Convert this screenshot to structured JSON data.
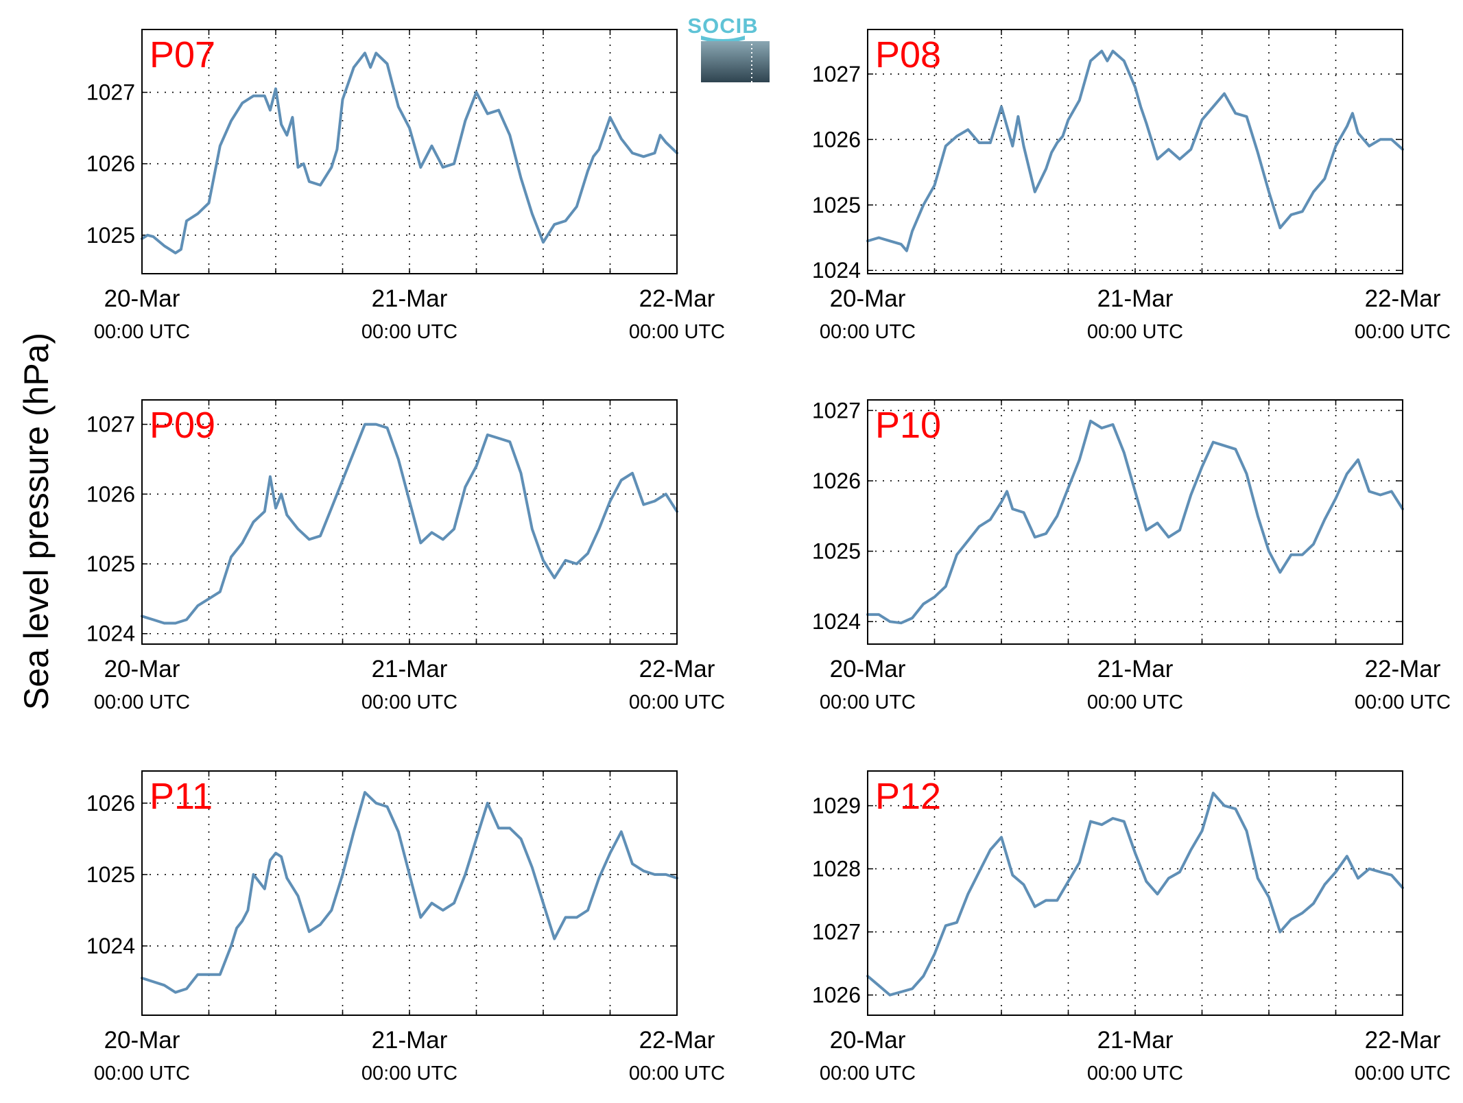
{
  "ylabel": "Sea level pressure (hPa)",
  "logo": {
    "text": "SOCIB"
  },
  "colors": {
    "line": "#5f8fb6",
    "panel_label": "#ff0000",
    "grid": "#000000"
  },
  "chart_data": [
    {
      "type": "line",
      "label": "P07",
      "x_ticks": [
        {
          "top": "20-Mar",
          "bottom": "00:00 UTC"
        },
        {
          "top": "21-Mar",
          "bottom": "00:00 UTC"
        },
        {
          "top": "22-Mar",
          "bottom": "00:00 UTC"
        }
      ],
      "xlim": [
        0,
        48
      ],
      "ylim": [
        1024.46,
        1027.88
      ],
      "yticks": [
        1025,
        1026,
        1027
      ],
      "grid": true,
      "x": [
        0,
        0.5,
        1,
        2,
        2.5,
        3,
        3.5,
        4,
        5,
        6,
        7,
        8,
        9,
        10,
        11,
        11.5,
        12,
        12.5,
        13,
        13.5,
        14,
        14.5,
        15,
        16,
        17,
        17.5,
        18,
        19,
        20,
        20.5,
        21,
        22,
        22.5,
        23,
        24,
        25,
        26,
        27,
        28,
        29,
        30,
        31,
        32,
        33,
        34,
        35,
        36,
        37,
        38,
        39,
        40,
        40.5,
        41,
        42,
        43,
        44,
        45,
        46,
        46.5,
        47,
        48
      ],
      "y": [
        1024.95,
        1025.0,
        1024.98,
        1024.85,
        1024.8,
        1024.75,
        1024.8,
        1025.2,
        1025.3,
        1025.45,
        1026.25,
        1026.6,
        1026.85,
        1026.95,
        1026.95,
        1026.75,
        1027.05,
        1026.55,
        1026.4,
        1026.65,
        1025.95,
        1026.0,
        1025.75,
        1025.7,
        1025.95,
        1026.2,
        1026.9,
        1027.35,
        1027.55,
        1027.35,
        1027.55,
        1027.4,
        1027.1,
        1026.8,
        1026.5,
        1025.95,
        1026.25,
        1025.95,
        1026.0,
        1026.6,
        1027.0,
        1026.7,
        1026.75,
        1026.4,
        1025.8,
        1025.3,
        1024.9,
        1025.15,
        1025.2,
        1025.4,
        1025.9,
        1026.1,
        1026.2,
        1026.65,
        1026.35,
        1026.15,
        1026.1,
        1026.15,
        1026.4,
        1026.3,
        1026.15
      ]
    },
    {
      "type": "line",
      "label": "P08",
      "x_ticks": [
        {
          "top": "20-Mar",
          "bottom": "00:00 UTC"
        },
        {
          "top": "21-Mar",
          "bottom": "00:00 UTC"
        },
        {
          "top": "22-Mar",
          "bottom": "00:00 UTC"
        }
      ],
      "xlim": [
        0,
        48
      ],
      "ylim": [
        1023.95,
        1027.68
      ],
      "yticks": [
        1024,
        1025,
        1026,
        1027
      ],
      "grid": true,
      "x": [
        0,
        1,
        2,
        3,
        3.5,
        4,
        5,
        6,
        7,
        8,
        9,
        10,
        11,
        12,
        13,
        13.5,
        14,
        14.5,
        15,
        16,
        16.5,
        17,
        17.5,
        18,
        19,
        20,
        21,
        21.5,
        22,
        23,
        24,
        24.5,
        25,
        26,
        27,
        28,
        29,
        30,
        31,
        32,
        33,
        34,
        35,
        35.5,
        36,
        37,
        38,
        39,
        40,
        41,
        42,
        43,
        43.5,
        44,
        45,
        46,
        47,
        48
      ],
      "y": [
        1024.45,
        1024.5,
        1024.45,
        1024.4,
        1024.3,
        1024.6,
        1025.0,
        1025.3,
        1025.9,
        1026.05,
        1026.15,
        1025.95,
        1025.95,
        1026.5,
        1025.9,
        1026.35,
        1025.9,
        1025.55,
        1025.2,
        1025.55,
        1025.8,
        1025.95,
        1026.05,
        1026.3,
        1026.6,
        1027.2,
        1027.35,
        1027.2,
        1027.35,
        1027.2,
        1026.8,
        1026.5,
        1026.25,
        1025.7,
        1025.85,
        1025.7,
        1025.85,
        1026.3,
        1026.5,
        1026.7,
        1026.4,
        1026.35,
        1025.8,
        1025.5,
        1025.2,
        1024.65,
        1024.85,
        1024.9,
        1025.2,
        1025.4,
        1025.9,
        1026.2,
        1026.4,
        1026.1,
        1025.9,
        1026.0,
        1026.0,
        1025.85
      ]
    },
    {
      "type": "line",
      "label": "P09",
      "x_ticks": [
        {
          "top": "20-Mar",
          "bottom": "00:00 UTC"
        },
        {
          "top": "21-Mar",
          "bottom": "00:00 UTC"
        },
        {
          "top": "22-Mar",
          "bottom": "00:00 UTC"
        }
      ],
      "xlim": [
        0,
        48
      ],
      "ylim": [
        1023.85,
        1027.35
      ],
      "yticks": [
        1024,
        1025,
        1026,
        1027
      ],
      "grid": true,
      "x": [
        0,
        1,
        2,
        3,
        4,
        5,
        6,
        7,
        8,
        9,
        10,
        11,
        11.5,
        12,
        12.5,
        13,
        14,
        15,
        16,
        17,
        18,
        19,
        20,
        21,
        22,
        23,
        24,
        25,
        26,
        27,
        28,
        29,
        30,
        31,
        32,
        33,
        34,
        35,
        36,
        37,
        38,
        39,
        40,
        41,
        42,
        43,
        44,
        45,
        46,
        47,
        48
      ],
      "y": [
        1024.25,
        1024.2,
        1024.15,
        1024.15,
        1024.2,
        1024.4,
        1024.5,
        1024.6,
        1025.1,
        1025.3,
        1025.6,
        1025.75,
        1026.25,
        1025.8,
        1026.0,
        1025.7,
        1025.5,
        1025.35,
        1025.4,
        1025.8,
        1026.2,
        1026.6,
        1027.0,
        1027.0,
        1026.95,
        1026.5,
        1025.9,
        1025.3,
        1025.45,
        1025.35,
        1025.5,
        1026.1,
        1026.4,
        1026.85,
        1026.8,
        1026.75,
        1026.3,
        1025.5,
        1025.05,
        1024.8,
        1025.05,
        1025.0,
        1025.15,
        1025.5,
        1025.9,
        1026.2,
        1026.3,
        1025.85,
        1025.9,
        1026.0,
        1025.75
      ]
    },
    {
      "type": "line",
      "label": "P10",
      "x_ticks": [
        {
          "top": "20-Mar",
          "bottom": "00:00 UTC"
        },
        {
          "top": "21-Mar",
          "bottom": "00:00 UTC"
        },
        {
          "top": "22-Mar",
          "bottom": "00:00 UTC"
        }
      ],
      "xlim": [
        0,
        48
      ],
      "ylim": [
        1023.68,
        1027.15
      ],
      "yticks": [
        1024,
        1025,
        1026,
        1027
      ],
      "grid": true,
      "x": [
        0,
        1,
        2,
        3,
        4,
        5,
        6,
        7,
        8,
        9,
        10,
        11,
        12,
        12.5,
        13,
        14,
        15,
        16,
        17,
        18,
        19,
        20,
        21,
        22,
        23,
        24,
        25,
        26,
        27,
        28,
        29,
        30,
        31,
        32,
        33,
        34,
        35,
        36,
        37,
        38,
        39,
        40,
        41,
        42,
        43,
        44,
        45,
        46,
        47,
        48
      ],
      "y": [
        1024.1,
        1024.1,
        1024.0,
        1023.98,
        1024.05,
        1024.25,
        1024.35,
        1024.5,
        1024.95,
        1025.15,
        1025.35,
        1025.45,
        1025.7,
        1025.85,
        1025.6,
        1025.55,
        1025.2,
        1025.25,
        1025.5,
        1025.9,
        1026.3,
        1026.85,
        1026.75,
        1026.8,
        1026.4,
        1025.85,
        1025.3,
        1025.4,
        1025.2,
        1025.3,
        1025.8,
        1026.2,
        1026.55,
        1026.5,
        1026.45,
        1026.1,
        1025.5,
        1025.0,
        1024.7,
        1024.95,
        1024.95,
        1025.1,
        1025.45,
        1025.75,
        1026.1,
        1026.3,
        1025.85,
        1025.8,
        1025.85,
        1025.6
      ]
    },
    {
      "type": "line",
      "label": "P11",
      "x_ticks": [
        {
          "top": "20-Mar",
          "bottom": "00:00 UTC"
        },
        {
          "top": "21-Mar",
          "bottom": "00:00 UTC"
        },
        {
          "top": "22-Mar",
          "bottom": "00:00 UTC"
        }
      ],
      "xlim": [
        0,
        48
      ],
      "ylim": [
        1023.03,
        1026.45
      ],
      "yticks": [
        1024,
        1025,
        1026
      ],
      "grid": true,
      "x": [
        0,
        1,
        2,
        3,
        4,
        5,
        6,
        7,
        8,
        8.5,
        9,
        9.5,
        10,
        11,
        11.5,
        12,
        12.5,
        13,
        14,
        15,
        16,
        17,
        18,
        19,
        20,
        21,
        22,
        23,
        24,
        25,
        26,
        27,
        28,
        29,
        30,
        31,
        32,
        33,
        34,
        35,
        36,
        37,
        38,
        39,
        40,
        41,
        42,
        43,
        44,
        45,
        46,
        47,
        48
      ],
      "y": [
        1023.55,
        1023.5,
        1023.45,
        1023.35,
        1023.4,
        1023.6,
        1023.6,
        1023.6,
        1024.0,
        1024.25,
        1024.35,
        1024.5,
        1025.0,
        1024.8,
        1025.2,
        1025.3,
        1025.25,
        1024.95,
        1024.7,
        1024.2,
        1024.3,
        1024.5,
        1025.0,
        1025.6,
        1026.15,
        1026.0,
        1025.95,
        1025.6,
        1025.0,
        1024.4,
        1024.6,
        1024.5,
        1024.6,
        1025.0,
        1025.5,
        1026.0,
        1025.65,
        1025.65,
        1025.5,
        1025.1,
        1024.6,
        1024.1,
        1024.4,
        1024.4,
        1024.5,
        1024.95,
        1025.3,
        1025.6,
        1025.15,
        1025.05,
        1025.0,
        1025.0,
        1024.95
      ]
    },
    {
      "type": "line",
      "label": "P12",
      "x_ticks": [
        {
          "top": "20-Mar",
          "bottom": "00:00 UTC"
        },
        {
          "top": "21-Mar",
          "bottom": "00:00 UTC"
        },
        {
          "top": "22-Mar",
          "bottom": "00:00 UTC"
        }
      ],
      "xlim": [
        0,
        48
      ],
      "ylim": [
        1025.68,
        1029.55
      ],
      "yticks": [
        1026,
        1027,
        1028,
        1029
      ],
      "grid": true,
      "x": [
        0,
        1,
        2,
        3,
        4,
        5,
        6,
        7,
        8,
        9,
        10,
        11,
        12,
        13,
        14,
        15,
        16,
        17,
        18,
        19,
        20,
        21,
        22,
        23,
        24,
        25,
        26,
        27,
        28,
        29,
        30,
        31,
        32,
        33,
        34,
        35,
        36,
        37,
        38,
        39,
        40,
        41,
        42,
        43,
        44,
        45,
        46,
        47,
        48
      ],
      "y": [
        1026.3,
        1026.15,
        1026.0,
        1026.05,
        1026.1,
        1026.3,
        1026.65,
        1027.1,
        1027.15,
        1027.6,
        1027.95,
        1028.3,
        1028.5,
        1027.9,
        1027.75,
        1027.4,
        1027.5,
        1027.5,
        1027.8,
        1028.1,
        1028.75,
        1028.7,
        1028.8,
        1028.75,
        1028.25,
        1027.8,
        1027.6,
        1027.85,
        1027.95,
        1028.3,
        1028.6,
        1029.2,
        1029.0,
        1028.95,
        1028.6,
        1027.85,
        1027.55,
        1027.0,
        1027.2,
        1027.3,
        1027.45,
        1027.75,
        1027.95,
        1028.2,
        1027.85,
        1028.0,
        1027.95,
        1027.9,
        1027.7
      ]
    }
  ]
}
